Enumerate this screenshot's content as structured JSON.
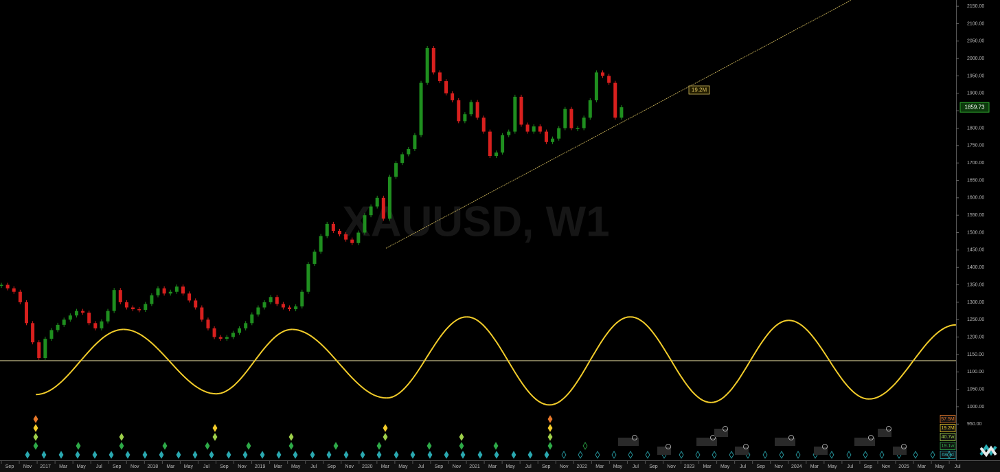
{
  "chart_data": {
    "type": "candlestick",
    "watermark": "XAUUSD, W1",
    "categories": [
      "Sep",
      "Nov",
      "2017",
      "Mar",
      "May",
      "Jul",
      "Sep",
      "Nov",
      "2018",
      "Mar",
      "May",
      "Jul",
      "Sep",
      "Nov",
      "2019",
      "Mar",
      "May",
      "Jul",
      "Sep",
      "Nov",
      "2020",
      "Mar",
      "May",
      "Jul",
      "Sep",
      "Nov",
      "2021",
      "Mar",
      "May",
      "Jul",
      "Sep",
      "Nov",
      "2022",
      "Mar",
      "May",
      "Jul",
      "Sep",
      "Nov",
      "2023",
      "Mar",
      "May",
      "Jul",
      "Sep",
      "Nov",
      "2024",
      "Mar",
      "May",
      "Jul",
      "Sep",
      "Nov",
      "2025",
      "Mar",
      "May",
      "Jul"
    ],
    "closes": [
      1350,
      1340,
      1330,
      1300,
      1240,
      1185,
      1140,
      1195,
      1220,
      1235,
      1250,
      1262,
      1275,
      1270,
      1240,
      1225,
      1245,
      1275,
      1335,
      1300,
      1285,
      1280,
      1278,
      1295,
      1320,
      1340,
      1325,
      1330,
      1345,
      1325,
      1305,
      1285,
      1250,
      1225,
      1200,
      1195,
      1200,
      1212,
      1225,
      1240,
      1265,
      1285,
      1300,
      1315,
      1295,
      1285,
      1280,
      1288,
      1330,
      1410,
      1445,
      1490,
      1525,
      1505,
      1495,
      1480,
      1470,
      1500,
      1550,
      1575,
      1600,
      1540,
      1660,
      1700,
      1725,
      1740,
      1780,
      1930,
      2030,
      1960,
      1935,
      1900,
      1880,
      1820,
      1840,
      1875,
      1830,
      1790,
      1720,
      1730,
      1780,
      1790,
      1890,
      1810,
      1790,
      1805,
      1790,
      1760,
      1770,
      1800,
      1855,
      1800,
      1800,
      1830,
      1880,
      1960,
      1950,
      1930,
      1830,
      1860
    ],
    "up_color": "#1f8f1f",
    "down_color": "#d8201e",
    "ylim": [
      846,
      2168
    ],
    "yticks": [
      {
        "value": 950,
        "label": "950.00"
      },
      {
        "value": 1000,
        "label": "1000.00"
      },
      {
        "value": 1050,
        "label": "1050.00"
      },
      {
        "value": 1100,
        "label": "1100.00"
      },
      {
        "value": 1150,
        "label": "1150.00"
      },
      {
        "value": 1200,
        "label": "1200.00"
      },
      {
        "value": 1250,
        "label": "1250.00"
      },
      {
        "value": 1300,
        "label": "1300.00"
      },
      {
        "value": 1350,
        "label": "1350.00"
      },
      {
        "value": 1400,
        "label": "1400.00"
      },
      {
        "value": 1450,
        "label": "1450.00"
      },
      {
        "value": 1500,
        "label": "1500.00"
      },
      {
        "value": 1550,
        "label": "1550.00"
      },
      {
        "value": 1600,
        "label": "1600.00"
      },
      {
        "value": 1650,
        "label": "1650.00"
      },
      {
        "value": 1700,
        "label": "1700.00"
      },
      {
        "value": 1750,
        "label": "1750.00"
      },
      {
        "value": 1800,
        "label": "1800.00"
      },
      {
        "value": 1850,
        "label": "1850.00"
      },
      {
        "value": 1900,
        "label": "1900.00"
      },
      {
        "value": 1950,
        "label": "1950.00"
      },
      {
        "value": 2000,
        "label": "2000.00"
      },
      {
        "value": 2050,
        "label": "2050.00"
      },
      {
        "value": 2100,
        "label": "2100.00"
      },
      {
        "value": 2150,
        "label": "2150.00"
      }
    ],
    "current_price": 1859.73,
    "trendline": {
      "x": [
        61.4,
        135.7
      ],
      "values": [
        1455,
        2168
      ],
      "color": "#d8c060",
      "label": "19.2M"
    },
    "hline": {
      "value": 1132,
      "color": "#f5e9a8"
    },
    "cycle_wave": {
      "x": [
        5.5,
        19.5,
        34.3,
        46.4,
        61.5,
        74.3,
        87.5,
        100.4,
        113.3,
        125.7,
        138.5,
        152.4
      ],
      "values": [
        1035,
        1222,
        1037,
        1222,
        1025,
        1258,
        1005,
        1258,
        1012,
        1248,
        1022,
        1235
      ],
      "color": "#f2cc2a"
    },
    "cycles": [
      {
        "label": "57.5M",
        "color": "#e8782a"
      },
      {
        "label": "19.2M",
        "color": "#f2cc2a"
      },
      {
        "label": "40.7w",
        "color": "#9ed04a"
      },
      {
        "label": "19.1w",
        "color": "#2eaa48"
      },
      {
        "label": "68.3d",
        "color": "#2aa8b0"
      }
    ]
  }
}
